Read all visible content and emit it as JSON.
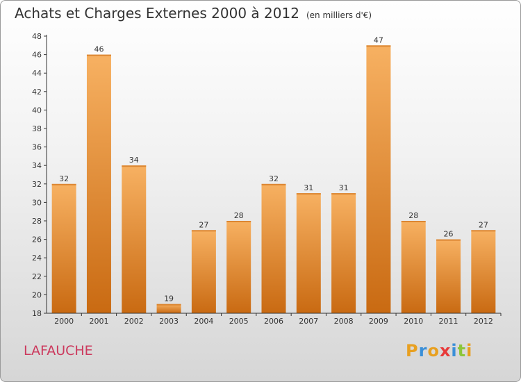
{
  "header": {
    "title": "Achats et Charges Externes 2000 à 2012",
    "unit": "(en milliers d'€)"
  },
  "footer": {
    "commune": "LAFAUCHE",
    "logo_letters": [
      "P",
      "r",
      "o",
      "x",
      "i",
      "t",
      "i"
    ],
    "logo_colors": [
      "#e8a020",
      "#3a8fd8",
      "#e8a020",
      "#e83a3a",
      "#3a8fd8",
      "#8cc63a",
      "#e8a020"
    ]
  },
  "colors": {
    "bar": "#f08c2a",
    "bar_light": "#f7b162",
    "bar_dark": "#c96a12",
    "axis": "#333333"
  },
  "chart_data": {
    "type": "bar",
    "title": "Achats et Charges Externes 2000 à 2012",
    "subtitle": "(en milliers d'€)",
    "categories": [
      "2000",
      "2001",
      "2002",
      "2003",
      "2004",
      "2005",
      "2006",
      "2007",
      "2008",
      "2009",
      "2010",
      "2011",
      "2012"
    ],
    "values": [
      32,
      46,
      34,
      19,
      27,
      28,
      32,
      31,
      31,
      47,
      28,
      26,
      27
    ],
    "ylim": [
      18,
      48
    ],
    "yticks": [
      18,
      20,
      22,
      24,
      26,
      28,
      30,
      32,
      34,
      36,
      38,
      40,
      42,
      44,
      46,
      48
    ],
    "grid": false,
    "xlabel": "",
    "ylabel": ""
  }
}
